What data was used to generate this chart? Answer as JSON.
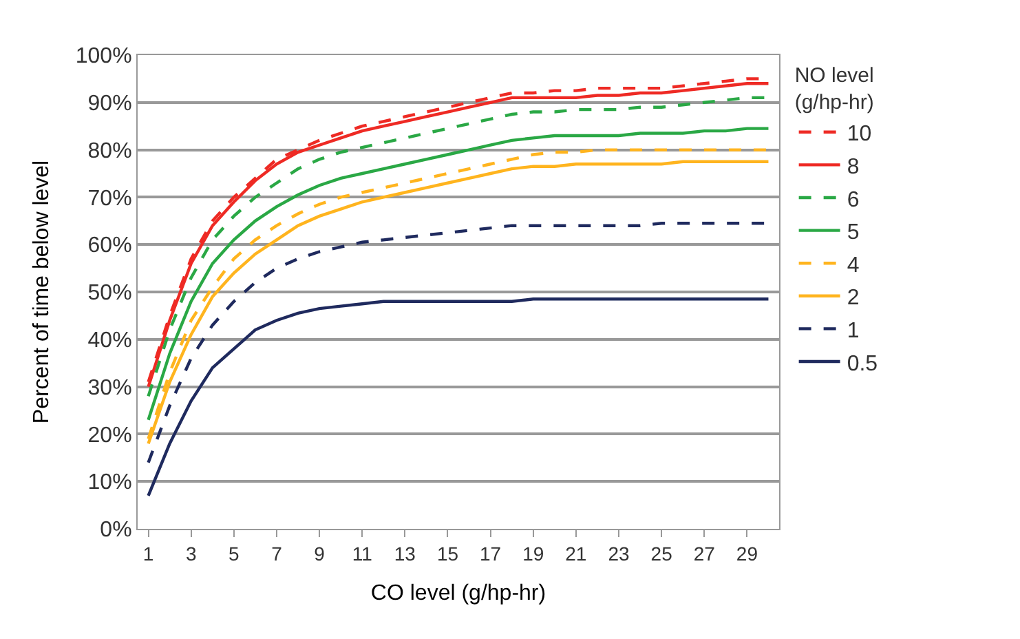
{
  "chart_data": {
    "type": "line",
    "xlabel": "CO level (g/hp-hr)",
    "ylabel": "Percent of time below level",
    "legend_title": "NO level\n(g/hp-hr)",
    "legend": "right",
    "grid": "y",
    "x": [
      1,
      2,
      3,
      4,
      5,
      6,
      7,
      8,
      9,
      10,
      11,
      12,
      13,
      14,
      15,
      16,
      17,
      18,
      19,
      20,
      21,
      22,
      23,
      24,
      25,
      26,
      27,
      28,
      29,
      30
    ],
    "xlim": [
      0.5,
      30.5
    ],
    "xticks": [
      1,
      3,
      5,
      7,
      9,
      11,
      13,
      15,
      17,
      19,
      21,
      23,
      25,
      27,
      29
    ],
    "ylim": [
      0,
      100
    ],
    "yticks": [
      {
        "value": 0,
        "label": "0%"
      },
      {
        "value": 10,
        "label": "10%"
      },
      {
        "value": 20,
        "label": "20%"
      },
      {
        "value": 30,
        "label": "30%"
      },
      {
        "value": 40,
        "label": "40%"
      },
      {
        "value": 50,
        "label": "50%"
      },
      {
        "value": 60,
        "label": "60%"
      },
      {
        "value": 70,
        "label": "70%"
      },
      {
        "value": 80,
        "label": "80%"
      },
      {
        "value": 90,
        "label": "90%"
      },
      {
        "value": 100,
        "label": "100%"
      }
    ],
    "series": [
      {
        "name": "10",
        "color": "#ee2a24",
        "line_style": "dashed",
        "values": [
          31,
          45,
          57,
          65,
          70,
          74,
          78,
          80,
          82,
          83.5,
          85,
          86,
          87,
          88,
          89,
          90,
          91,
          92,
          92,
          92.5,
          92.5,
          93,
          93,
          93,
          93,
          93.5,
          94,
          94.5,
          95,
          95
        ]
      },
      {
        "name": "8",
        "color": "#ee2a24",
        "line_style": "solid",
        "values": [
          30,
          44,
          56,
          64,
          69,
          73.5,
          77,
          79.5,
          81,
          82.5,
          84,
          85,
          86,
          87,
          88,
          89,
          90,
          91,
          91,
          91,
          91,
          91.5,
          91.5,
          92,
          92,
          92.5,
          93,
          93.5,
          94,
          94
        ]
      },
      {
        "name": "6",
        "color": "#2aa845",
        "line_style": "dashed",
        "values": [
          28,
          42,
          53,
          61,
          66,
          70,
          73,
          76,
          78,
          79.5,
          80.5,
          81.5,
          82.5,
          83.5,
          84.5,
          85.5,
          86.5,
          87.5,
          88,
          88,
          88.5,
          88.5,
          88.5,
          89,
          89,
          89.5,
          90,
          90.5,
          91,
          91
        ]
      },
      {
        "name": "5",
        "color": "#2aa845",
        "line_style": "solid",
        "values": [
          23,
          37,
          48,
          56,
          61,
          65,
          68,
          70.5,
          72.5,
          74,
          75,
          76,
          77,
          78,
          79,
          80,
          81,
          82,
          82.5,
          83,
          83,
          83,
          83,
          83.5,
          83.5,
          83.5,
          84,
          84,
          84.5,
          84.5
        ]
      },
      {
        "name": "4",
        "color": "#ffb41e",
        "line_style": "dashed",
        "values": [
          19,
          33,
          44,
          51,
          57,
          61,
          64,
          66.5,
          68.5,
          70,
          71,
          72,
          73,
          74,
          75,
          76,
          77,
          78,
          79,
          79.5,
          79.5,
          80,
          80,
          80,
          80,
          80,
          80,
          80,
          80,
          80
        ]
      },
      {
        "name": "2",
        "color": "#ffb41e",
        "line_style": "solid",
        "values": [
          18,
          31,
          41,
          49,
          54,
          58,
          61,
          64,
          66,
          67.5,
          69,
          70,
          71,
          72,
          73,
          74,
          75,
          76,
          76.5,
          76.5,
          77,
          77,
          77,
          77,
          77,
          77.5,
          77.5,
          77.5,
          77.5,
          77.5
        ]
      },
      {
        "name": "1",
        "color": "#1f2a5e",
        "line_style": "dashed",
        "values": [
          14,
          26,
          36,
          43,
          48,
          52,
          55,
          57,
          58.5,
          59.5,
          60.5,
          61,
          61.5,
          62,
          62.5,
          63,
          63.5,
          64,
          64,
          64,
          64,
          64,
          64,
          64,
          64.5,
          64.5,
          64.5,
          64.5,
          64.5,
          64.5
        ]
      },
      {
        "name": "0.5",
        "color": "#1f2a5e",
        "line_style": "solid",
        "values": [
          7,
          18,
          27,
          34,
          38,
          42,
          44,
          45.5,
          46.5,
          47,
          47.5,
          48,
          48,
          48,
          48,
          48,
          48,
          48,
          48.5,
          48.5,
          48.5,
          48.5,
          48.5,
          48.5,
          48.5,
          48.5,
          48.5,
          48.5,
          48.5,
          48.5
        ]
      }
    ]
  }
}
